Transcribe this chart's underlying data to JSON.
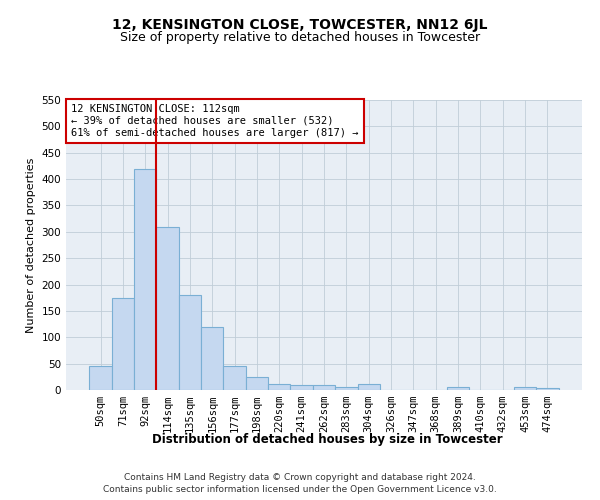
{
  "title": "12, KENSINGTON CLOSE, TOWCESTER, NN12 6JL",
  "subtitle": "Size of property relative to detached houses in Towcester",
  "xlabel": "Distribution of detached houses by size in Towcester",
  "ylabel": "Number of detached properties",
  "categories": [
    "50sqm",
    "71sqm",
    "92sqm",
    "114sqm",
    "135sqm",
    "156sqm",
    "177sqm",
    "198sqm",
    "220sqm",
    "241sqm",
    "262sqm",
    "283sqm",
    "304sqm",
    "326sqm",
    "347sqm",
    "368sqm",
    "389sqm",
    "410sqm",
    "432sqm",
    "453sqm",
    "474sqm"
  ],
  "values": [
    45,
    175,
    420,
    310,
    180,
    120,
    45,
    25,
    12,
    10,
    10,
    5,
    12,
    0,
    0,
    0,
    5,
    0,
    0,
    5,
    3
  ],
  "bar_color": "#c5d8f0",
  "bar_edge_color": "#7aafd4",
  "bar_edge_width": 0.8,
  "vline_color": "#cc0000",
  "vline_lw": 1.5,
  "annotation_line1": "12 KENSINGTON CLOSE: 112sqm",
  "annotation_line2": "← 39% of detached houses are smaller (532)",
  "annotation_line3": "61% of semi-detached houses are larger (817) →",
  "annotation_box_color": "white",
  "annotation_box_edge": "#cc0000",
  "ylim": [
    0,
    550
  ],
  "yticks": [
    0,
    50,
    100,
    150,
    200,
    250,
    300,
    350,
    400,
    450,
    500,
    550
  ],
  "grid_color": "#c0cdd8",
  "bg_color": "#e8eef5",
  "footer_line1": "Contains HM Land Registry data © Crown copyright and database right 2024.",
  "footer_line2": "Contains public sector information licensed under the Open Government Licence v3.0.",
  "title_fontsize": 10,
  "subtitle_fontsize": 9,
  "xlabel_fontsize": 8.5,
  "ylabel_fontsize": 8,
  "tick_fontsize": 7.5,
  "ann_fontsize": 7.5,
  "footer_fontsize": 6.5
}
